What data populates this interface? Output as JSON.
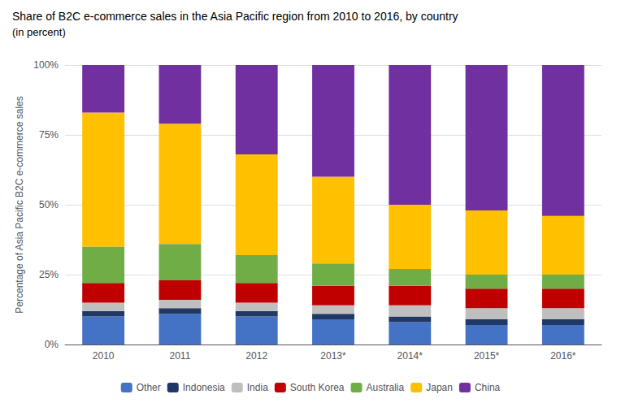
{
  "chart_data": {
    "type": "bar",
    "title": "Share of B2C e-commerce sales in the Asia Pacific region from 2010 to 2016, by country",
    "subtitle": "(in percent)",
    "ylabel": "Percentage of Asia Pacific B2C e-commerce sales",
    "categories": [
      "2010",
      "2011",
      "2012",
      "2013*",
      "2014*",
      "2015*",
      "2016*"
    ],
    "series": [
      {
        "name": "Other",
        "color": "#4472C4",
        "values": [
          10,
          11,
          10,
          9,
          8,
          7,
          7
        ]
      },
      {
        "name": "Indonesia",
        "color": "#1F3864",
        "values": [
          2,
          2,
          2,
          2,
          2,
          2,
          2
        ]
      },
      {
        "name": "India",
        "color": "#BFBFBF",
        "values": [
          3,
          3,
          3,
          3,
          4,
          4,
          4
        ]
      },
      {
        "name": "South Korea",
        "color": "#C00000",
        "values": [
          7,
          7,
          7,
          7,
          7,
          7,
          7
        ]
      },
      {
        "name": "Australia",
        "color": "#70AD47",
        "values": [
          13,
          13,
          10,
          8,
          6,
          5,
          5
        ]
      },
      {
        "name": "Japan",
        "color": "#FFC000",
        "values": [
          48,
          43,
          36,
          31,
          23,
          23,
          21
        ]
      },
      {
        "name": "China",
        "color": "#7030A0",
        "values": [
          17,
          21,
          32,
          40,
          50,
          52,
          54
        ]
      }
    ],
    "stacked": true,
    "ylim": [
      0,
      100
    ],
    "yticks": [
      {
        "value": 0,
        "label": "0%"
      },
      {
        "value": 25,
        "label": "25%"
      },
      {
        "value": 50,
        "label": "50%"
      },
      {
        "value": 75,
        "label": "75%"
      },
      {
        "value": 100,
        "label": "100%"
      }
    ],
    "grid": true,
    "legend": "bottom"
  }
}
